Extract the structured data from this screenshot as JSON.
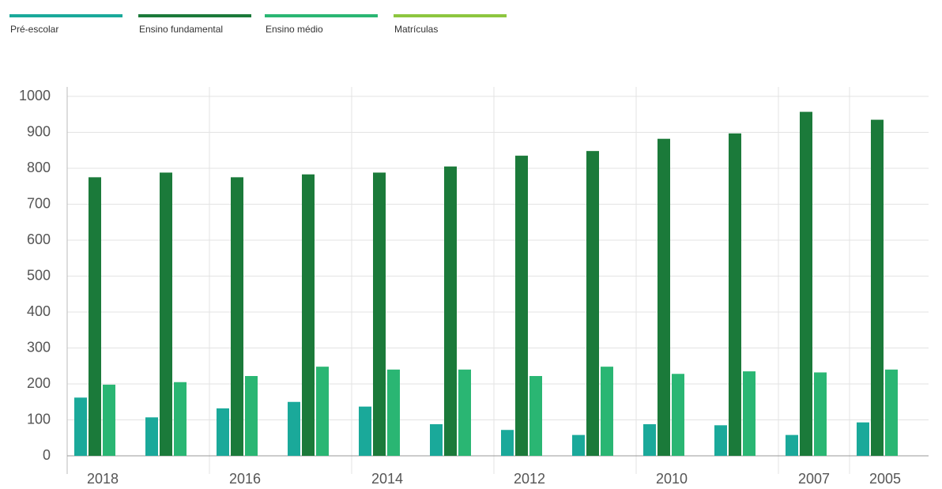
{
  "chart_data": {
    "type": "bar",
    "categories": [
      "2018",
      null,
      "2016",
      null,
      "2014",
      null,
      "2012",
      null,
      "2010",
      null,
      "2007",
      "2005"
    ],
    "series": [
      {
        "name": "Pré-escolar",
        "color": "#1aa99a",
        "values": [
          162,
          107,
          132,
          150,
          137,
          88,
          72,
          58,
          88,
          85,
          58,
          93
        ]
      },
      {
        "name": "Ensino fundamental",
        "color": "#1b7a3a",
        "values": [
          775,
          788,
          775,
          783,
          788,
          805,
          835,
          848,
          882,
          897,
          957,
          935
        ]
      },
      {
        "name": "Ensino médio",
        "color": "#2ab673",
        "values": [
          198,
          205,
          222,
          248,
          240,
          240,
          222,
          248,
          228,
          235,
          232,
          240
        ]
      },
      {
        "name": "Matrículas",
        "color": "#8dc63f",
        "values": [
          null,
          null,
          null,
          null,
          null,
          null,
          null,
          null,
          null,
          null,
          null,
          null
        ]
      }
    ],
    "ylim": [
      0,
      1000
    ],
    "yticks": [
      0,
      100,
      200,
      300,
      400,
      500,
      600,
      700,
      800,
      900,
      1000
    ],
    "grid": true,
    "legend": "top"
  }
}
